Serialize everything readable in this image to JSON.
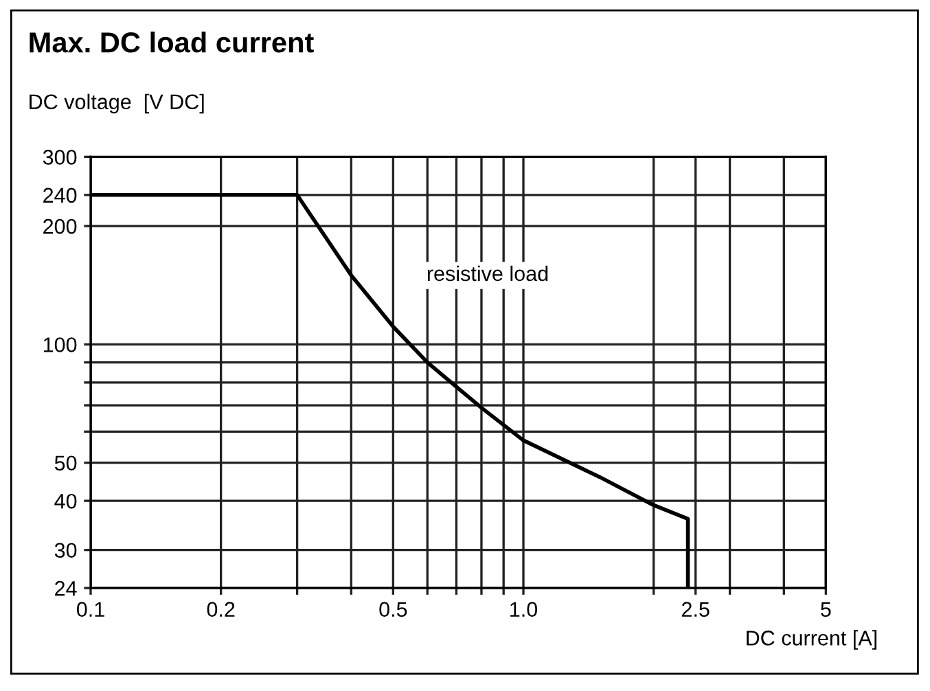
{
  "chart_data": {
    "type": "line",
    "title": "Max. DC load current",
    "xlabel": "DC current [A]",
    "ylabel": "DC voltage  [V DC]",
    "log": "xy",
    "grid": true,
    "legend": false,
    "xlim": [
      0.1,
      5
    ],
    "ylim": [
      24,
      300
    ],
    "xticks": [
      0.1,
      0.2,
      {
        "value": 0.3,
        "label": null
      },
      {
        "value": 0.4,
        "label": null
      },
      0.5,
      {
        "value": 0.6,
        "label": null
      },
      {
        "value": 0.7,
        "label": null
      },
      {
        "value": 0.8,
        "label": null
      },
      {
        "value": 0.9,
        "label": null
      },
      {
        "value": 1,
        "label": "1.0"
      },
      {
        "value": 2,
        "label": null
      },
      2.5,
      {
        "value": 3,
        "label": null
      },
      {
        "value": 4,
        "label": null
      },
      5
    ],
    "yticks": [
      24,
      30,
      40,
      50,
      {
        "value": 60,
        "label": null
      },
      {
        "value": 70,
        "label": null
      },
      {
        "value": 80,
        "label": null
      },
      {
        "value": 90,
        "label": null
      },
      100,
      200,
      240,
      300
    ],
    "annotations": [
      "resistive load"
    ],
    "series": [
      {
        "color": "#000000",
        "x": [
          0.1,
          0.3,
          0.4,
          0.5,
          0.6,
          0.7,
          0.8,
          1.0,
          1.5,
          2.0,
          2.4,
          2.4
        ],
        "values": [
          240,
          240,
          150,
          111,
          90,
          78,
          69,
          57,
          46,
          39,
          36,
          24
        ]
      }
    ]
  }
}
